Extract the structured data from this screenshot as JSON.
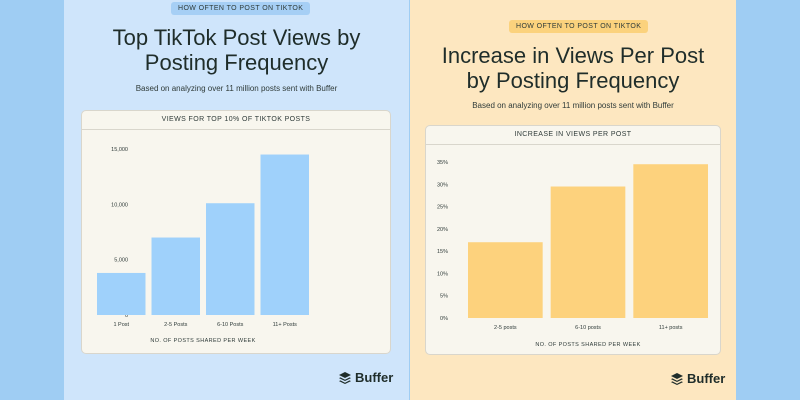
{
  "left": {
    "tag": "HOW OFTEN TO POST ON TIKTOK",
    "title_line1": "Top TikTok Post Views by",
    "title_line2": "Posting Frequency",
    "subtitle": "Based on analyzing over 11 million posts sent with Buffer",
    "logo_text": "Buffer"
  },
  "right": {
    "tag": "HOW OFTEN TO POST ON TIKTOK",
    "title_line1": "Increase in Views Per Post",
    "title_line2": "by Posting Frequency",
    "subtitle": "Based on analyzing over 11 million posts sent with Buffer",
    "logo_text": "Buffer"
  },
  "chart_data": [
    {
      "type": "bar",
      "title": "VIEWS FOR TOP 10% OF TIKTOK POSTS",
      "xlabel": "NO. OF POSTS SHARED PER WEEK",
      "ylabel": "",
      "categories": [
        "1 Post",
        "2-5 Posts",
        "6-10 Posts",
        "11+ Posts"
      ],
      "values": [
        3800,
        7000,
        10100,
        14500
      ],
      "ylim": [
        0,
        15000
      ],
      "yticks": [
        0,
        5000,
        10000,
        15000
      ],
      "ytick_labels": [
        "0",
        "5,000",
        "10,000",
        "15,000"
      ],
      "grid": false,
      "color": "#9fd1fb"
    },
    {
      "type": "bar",
      "title": "INCREASE IN VIEWS PER POST",
      "xlabel": "NO. OF POSTS SHARED PER WEEK",
      "ylabel": "",
      "categories": [
        "2-5 posts",
        "6-10 posts",
        "11+ posts"
      ],
      "values": [
        17,
        29.5,
        34.5
      ],
      "ylim": [
        0,
        35
      ],
      "yticks": [
        0,
        5,
        10,
        15,
        20,
        25,
        30,
        35
      ],
      "ytick_labels": [
        "0%",
        "5%",
        "10%",
        "15%",
        "20%",
        "25%",
        "30%",
        "35%"
      ],
      "grid": false,
      "color": "#fdd27d"
    }
  ]
}
